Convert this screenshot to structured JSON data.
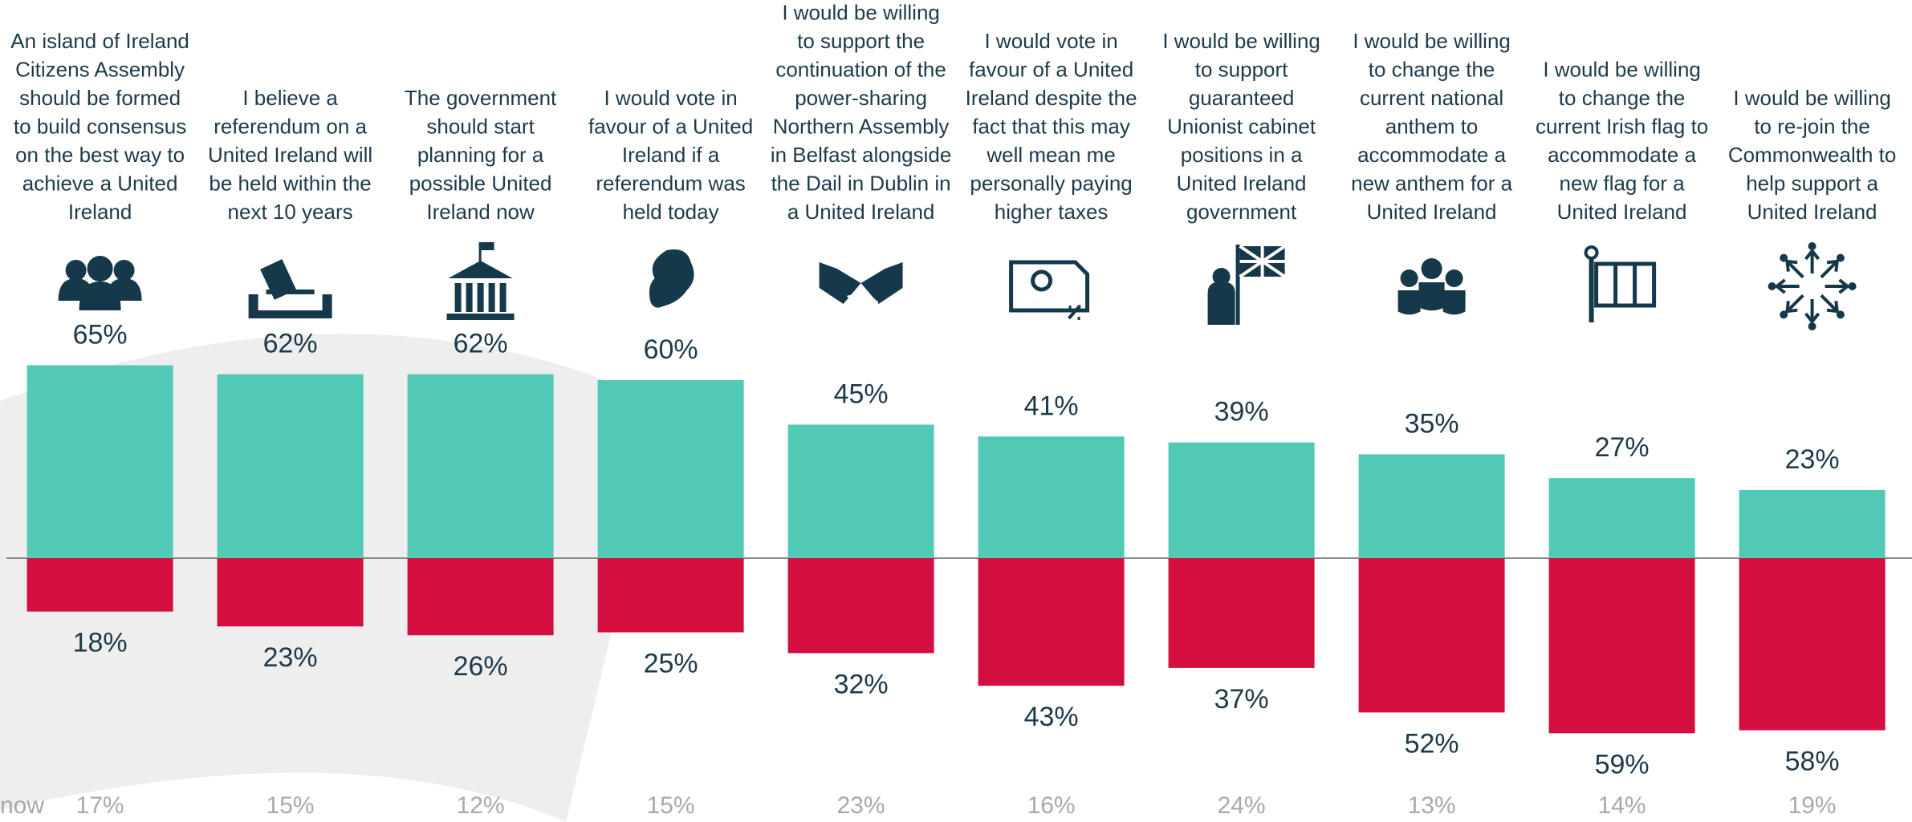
{
  "chart_data": {
    "type": "diverging_bar",
    "categories": [
      "An island of Ireland\nCitizens Assembly\nshould be formed\nto build consensus\non the best way to\nachieve a United\nIreland",
      "I believe a\nreferendum on a\nUnited Ireland will\nbe held within the\nnext 10 years",
      "The government\nshould start\nplanning for a\npossible United\nIreland now",
      "I would vote in\nfavour of a United\nIreland if a\nreferendum was\nheld today",
      "I would be willing\nto support the\ncontinuation of the\npower-sharing\nNorthern Assembly\nin Belfast alongside\nthe Dail in Dublin in\na United Ireland",
      "I would vote in\nfavour of a United\nIreland despite the\nfact that this may\nwell mean me\npersonally paying\nhigher taxes",
      "I would be willing\nto support\nguaranteed\nUnionist cabinet\npositions in a\nUnited Ireland\ngovernment",
      "I would be willing\nto change the\ncurrent national\nanthem to\naccommodate a\nnew anthem for a\nUnited Ireland",
      "I would be willing\nto change the\ncurrent Irish flag to\naccommodate a\nnew flag for a\nUnited Ireland",
      "I would be willing\nto re-join the\nCommonwealth to\nhelp support a\nUnited Ireland"
    ],
    "series": [
      {
        "color": "#52c9b5",
        "values": [
          65,
          62,
          62,
          60,
          45,
          41,
          39,
          35,
          27,
          23
        ],
        "value_labels": [
          "65%",
          "62%",
          "62%",
          "60%",
          "45%",
          "41%",
          "39%",
          "35%",
          "27%",
          "23%"
        ]
      },
      {
        "color": "#d20f3e",
        "values": [
          18,
          23,
          26,
          25,
          32,
          43,
          37,
          52,
          59,
          58
        ],
        "value_labels": [
          "18%",
          "23%",
          "26%",
          "25%",
          "32%",
          "43%",
          "37%",
          "52%",
          "59%",
          "58%"
        ]
      },
      {
        "color": "#a9a9a9",
        "values": [
          17,
          15,
          12,
          15,
          23,
          16,
          24,
          13,
          14,
          19
        ],
        "value_labels": [
          "17%",
          "15%",
          "12%",
          "15%",
          "23%",
          "16%",
          "24%",
          "13%",
          "14%",
          "19%"
        ]
      }
    ],
    "row_label": "now"
  }
}
